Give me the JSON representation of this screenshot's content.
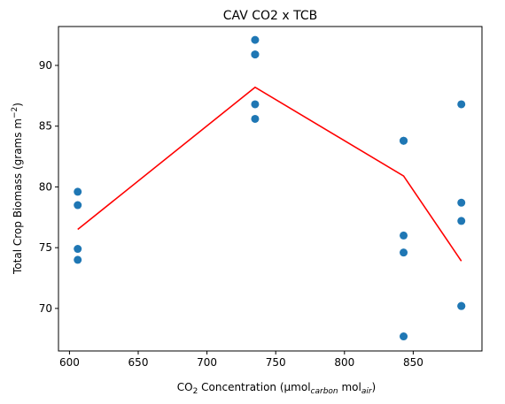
{
  "chart_data": {
    "type": "scatter",
    "title": "CAV CO2 x TCB",
    "xlabel": {
      "prefix": "CO",
      "prefix_sub": "2",
      "middle": " Concentration (μmol",
      "middle_sub": "carbon",
      "suffix": " mol",
      "suffix_sub": "air",
      "end": ")"
    },
    "ylabel": {
      "prefix": "Total Crop Biomass (grams m",
      "sup": "−2",
      "end": ")"
    },
    "xlim": [
      592,
      900
    ],
    "ylim": [
      66.5,
      93.2
    ],
    "xticks": [
      600,
      650,
      700,
      750,
      800,
      850
    ],
    "yticks": [
      70,
      75,
      80,
      85,
      90
    ],
    "grid": false,
    "legend": "none",
    "colors": {
      "points": "#1f77b4",
      "line": "#ff0000"
    },
    "scatter": [
      {
        "x": 606,
        "y": 79.6
      },
      {
        "x": 606,
        "y": 78.5
      },
      {
        "x": 606,
        "y": 74.9
      },
      {
        "x": 606,
        "y": 74.0
      },
      {
        "x": 735,
        "y": 92.1
      },
      {
        "x": 735,
        "y": 90.9
      },
      {
        "x": 735,
        "y": 90.9
      },
      {
        "x": 735,
        "y": 86.8
      },
      {
        "x": 735,
        "y": 85.6
      },
      {
        "x": 843,
        "y": 83.8
      },
      {
        "x": 843,
        "y": 83.8
      },
      {
        "x": 843,
        "y": 76.0
      },
      {
        "x": 843,
        "y": 74.6
      },
      {
        "x": 843,
        "y": 67.7
      },
      {
        "x": 885,
        "y": 86.8
      },
      {
        "x": 885,
        "y": 78.7
      },
      {
        "x": 885,
        "y": 77.2
      },
      {
        "x": 885,
        "y": 70.2
      },
      {
        "x": 885,
        "y": 70.2
      }
    ],
    "line": {
      "x": [
        606,
        735,
        843,
        885
      ],
      "y": [
        76.5,
        88.2,
        80.9,
        73.9
      ]
    }
  }
}
